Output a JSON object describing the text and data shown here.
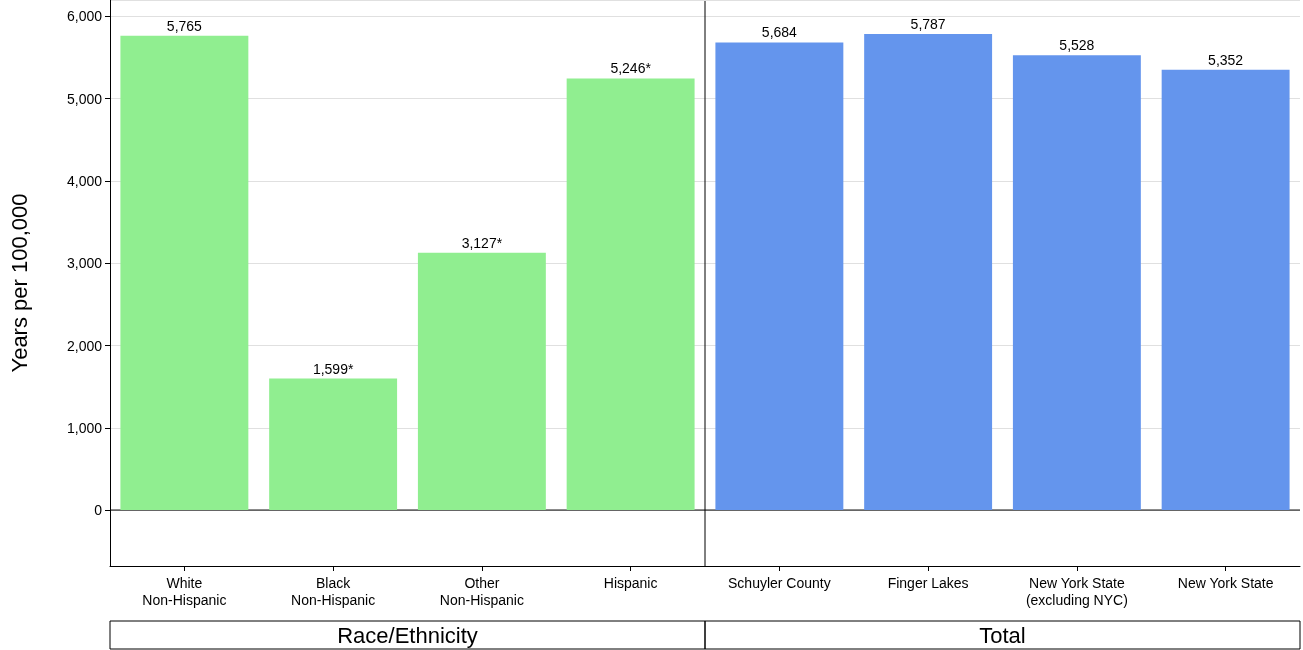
{
  "chart_data": {
    "type": "bar",
    "ylabel": "Years per 100,000",
    "categories": [
      "White\nNon-Hispanic",
      "Black\nNon-Hispanic",
      "Other\nNon-Hispanic",
      "Hispanic",
      "Schuyler County",
      "Finger Lakes",
      "New York State\n(excluding NYC)",
      "New York State"
    ],
    "values": [
      5765,
      1599,
      3127,
      5246,
      5684,
      5787,
      5528,
      5352
    ],
    "value_labels": [
      "5,765",
      "1,599*",
      "3,127*",
      "5,246*",
      "5,684",
      "5,787",
      "5,528",
      "5,352"
    ],
    "colors": [
      "#90ee90",
      "#90ee90",
      "#90ee90",
      "#90ee90",
      "#6495ed",
      "#6495ed",
      "#6495ed",
      "#6495ed"
    ],
    "ylim": [
      -680,
      6200
    ],
    "yticks": [
      0,
      {
        "value": 1000,
        "label": "1,000"
      },
      {
        "value": 2000,
        "label": "2,000"
      },
      {
        "value": 3000,
        "label": "3,000"
      },
      {
        "value": 4000,
        "label": "4,000"
      },
      {
        "value": 5000,
        "label": "5,000"
      },
      {
        "value": 6000,
        "label": "6,000"
      }
    ],
    "grid": "y",
    "annotations": [
      "Race/Ethnicity",
      "Total"
    ]
  }
}
